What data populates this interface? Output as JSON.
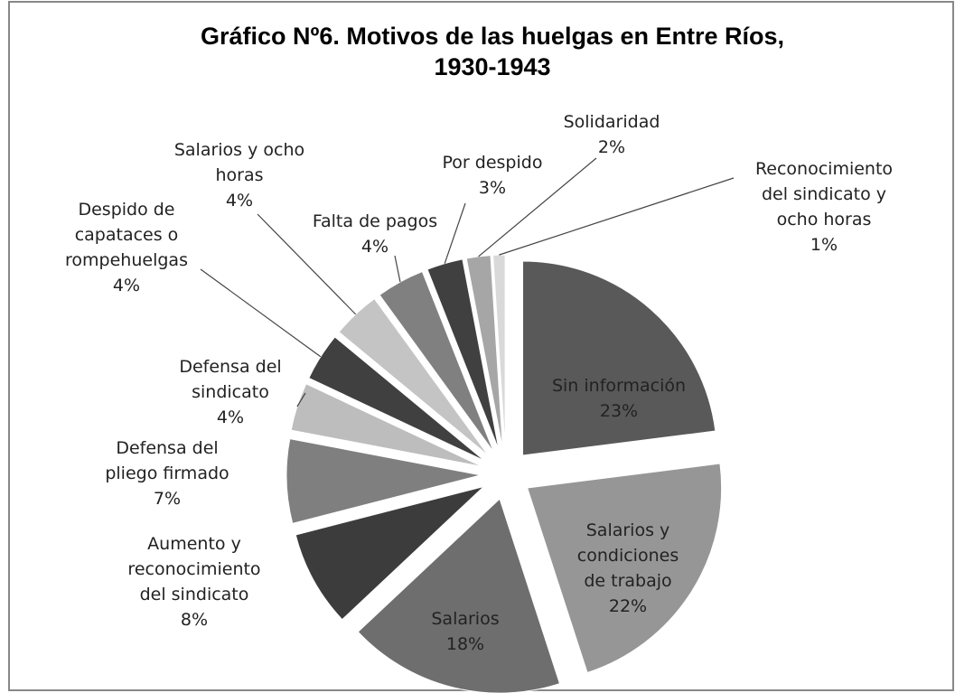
{
  "chart_data": {
    "type": "pie",
    "title": "Gráfico Nº6. Motivos de las huelgas en Entre Ríos, 1930-1943",
    "categories": [
      "Sin información",
      "Salarios y condiciones de trabajo",
      "Salarios",
      "Aumento y reconocimiento del sindicato",
      "Defensa del pliego firmado",
      "Defensa del sindicato",
      "Despido de capataces o rompehuelgas",
      "Salarios y ocho horas",
      "Falta de pagos",
      "Por despido",
      "Solidaridad",
      "Reconocimiento del sindicato y ocho horas"
    ],
    "values": [
      23,
      22,
      18,
      8,
      7,
      4,
      4,
      4,
      4,
      3,
      2,
      1
    ],
    "value_labels": [
      "23%",
      "22%",
      "18%",
      "8%",
      "7%",
      "4%",
      "4%",
      "4%",
      "4%",
      "3%",
      "2%",
      "1%"
    ],
    "colors": [
      "#595959",
      "#969696",
      "#6e6e6e",
      "#3c3c3c",
      "#7f7f7f",
      "#bdbdbd",
      "#404040",
      "#c4c4c4",
      "#808080",
      "#404040",
      "#a6a6a6",
      "#d9d9d9"
    ]
  }
}
